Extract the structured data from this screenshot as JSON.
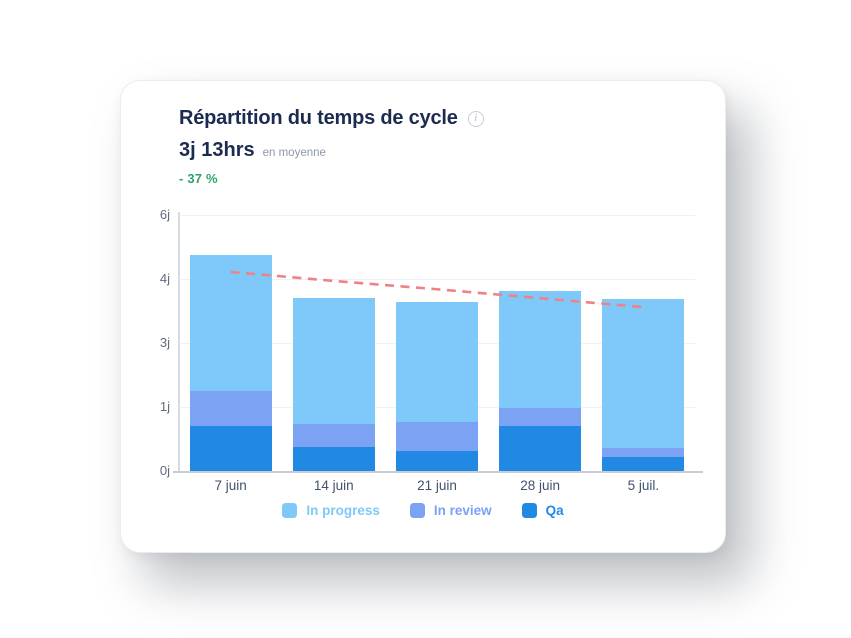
{
  "card": {
    "title": "Répartition du temps de cycle",
    "metric_value": "3j 13hrs",
    "metric_caption": "en moyenne",
    "delta": "- 37 %"
  },
  "icons": {
    "info_glyph": "i"
  },
  "colors": {
    "title_navy": "#1d2b50",
    "delta_green": "#2ea36b",
    "in_progress_blue": "#7fc9fa",
    "in_review_blue": "#7ca2f4",
    "qa_blue": "#2189e4",
    "trend_salmon": "#ee8286"
  },
  "chart_data": {
    "type": "bar",
    "stacked": true,
    "title": "Répartition du temps de cycle",
    "unit": "jours (j)",
    "categories": [
      "7 juin",
      "14 juin",
      "21 juin",
      "28 juin",
      "5 juil."
    ],
    "series": [
      {
        "name": "In progress",
        "color": "#7fc9fa",
        "values_days": [
          3.26,
          2.96,
          2.87,
          2.83,
          3.33
        ]
      },
      {
        "name": "In review",
        "color": "#7ca2f4",
        "values_days": [
          0.8,
          0.36,
          0.46,
          0.28,
          0.14
        ]
      },
      {
        "name": "Qa",
        "color": "#2189e4",
        "values_days": [
          0.7,
          0.38,
          0.31,
          0.7,
          0.22
        ]
      }
    ],
    "stack_order_bottom_to_top": [
      "Qa",
      "In review",
      "In progress"
    ],
    "totals_days": [
      4.76,
      3.7,
      3.64,
      3.81,
      3.69
    ],
    "trend_line": {
      "style": "dashed",
      "color": "#ee8286",
      "values_days": [
        4.22,
        3.97,
        3.84,
        3.7,
        3.56
      ]
    },
    "y_ticks": [
      "0j",
      "1j",
      "3j",
      "4j",
      "6j"
    ],
    "y_tick_values": [
      0,
      1,
      3,
      4,
      6
    ],
    "grid": true,
    "legend_position": "bottom"
  }
}
